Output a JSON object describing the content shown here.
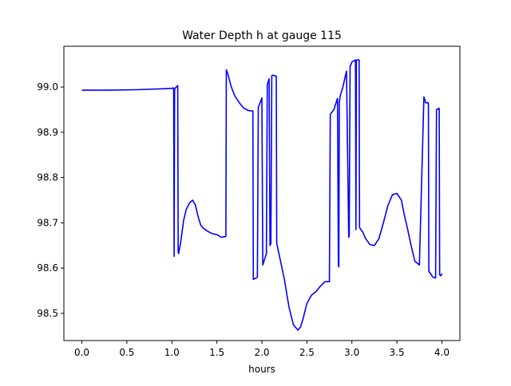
{
  "chart_data": {
    "type": "line",
    "title": "Water Depth h at gauge 115",
    "xlabel": "hours",
    "ylabel": "",
    "xlim": [
      -0.2,
      4.2
    ],
    "ylim": [
      98.44,
      99.09
    ],
    "x_ticks": [
      0.0,
      0.5,
      1.0,
      1.5,
      2.0,
      2.5,
      3.0,
      3.5,
      4.0
    ],
    "x_tick_labels": [
      "0.0",
      "0.5",
      "1.0",
      "1.5",
      "2.0",
      "2.5",
      "3.0",
      "3.5",
      "4.0"
    ],
    "y_ticks": [
      98.5,
      98.6,
      98.7,
      98.8,
      98.9,
      99.0
    ],
    "y_tick_labels": [
      "98.5",
      "98.6",
      "98.7",
      "98.8",
      "98.9",
      "99.0"
    ],
    "grid": false,
    "legend": "none",
    "series": [
      {
        "color": "#0000ff",
        "x": [
          0.0,
          0.3,
          0.6,
          0.9,
          1.0,
          1.02,
          1.025,
          1.03,
          1.04,
          1.05,
          1.065,
          1.07,
          1.075,
          1.1,
          1.13,
          1.16,
          1.2,
          1.23,
          1.26,
          1.29,
          1.32,
          1.35,
          1.4,
          1.45,
          1.5,
          1.55,
          1.6,
          1.605,
          1.62,
          1.66,
          1.7,
          1.75,
          1.8,
          1.85,
          1.9,
          1.905,
          1.95,
          1.96,
          2.0,
          2.01,
          2.05,
          2.06,
          2.08,
          2.09,
          2.1,
          2.11,
          2.12,
          2.16,
          2.165,
          2.2,
          2.25,
          2.3,
          2.35,
          2.4,
          2.43,
          2.46,
          2.5,
          2.55,
          2.6,
          2.65,
          2.7,
          2.75,
          2.76,
          2.8,
          2.84,
          2.85,
          2.855,
          2.86,
          2.87,
          2.9,
          2.94,
          2.965,
          2.97,
          2.98,
          2.99,
          3.0,
          3.04,
          3.045,
          3.05,
          3.06,
          3.08,
          3.085,
          3.09,
          3.12,
          3.15,
          3.2,
          3.25,
          3.3,
          3.35,
          3.4,
          3.45,
          3.5,
          3.55,
          3.58,
          3.62,
          3.66,
          3.7,
          3.75,
          3.8,
          3.81,
          3.82,
          3.85,
          3.855,
          3.9,
          3.93,
          3.94,
          3.97,
          3.975,
          3.99,
          4.0
        ],
        "y": [
          98.993,
          98.993,
          98.994,
          98.996,
          98.997,
          98.998,
          98.626,
          98.995,
          98.998,
          99.0,
          99.003,
          98.635,
          98.632,
          98.66,
          98.705,
          98.73,
          98.745,
          98.75,
          98.74,
          98.715,
          98.695,
          98.688,
          98.681,
          98.676,
          98.674,
          98.668,
          98.67,
          99.038,
          99.03,
          99.0,
          98.98,
          98.965,
          98.953,
          98.948,
          98.947,
          98.575,
          98.58,
          98.955,
          98.976,
          98.607,
          98.632,
          99.005,
          99.018,
          98.65,
          98.655,
          99.025,
          99.026,
          99.024,
          98.655,
          98.622,
          98.575,
          98.515,
          98.475,
          98.463,
          98.47,
          98.49,
          98.522,
          98.54,
          98.548,
          98.56,
          98.57,
          98.57,
          98.94,
          98.95,
          98.975,
          98.605,
          98.603,
          98.965,
          98.98,
          99.0,
          99.035,
          98.668,
          98.672,
          99.045,
          99.05,
          99.055,
          99.06,
          98.685,
          99.058,
          99.06,
          99.06,
          98.69,
          98.688,
          98.68,
          98.666,
          98.652,
          98.65,
          98.665,
          98.7,
          98.738,
          98.762,
          98.765,
          98.75,
          98.72,
          98.685,
          98.648,
          98.615,
          98.607,
          98.978,
          98.972,
          98.965,
          98.965,
          98.593,
          98.58,
          98.578,
          98.95,
          98.953,
          98.585,
          98.583,
          98.588
        ]
      }
    ]
  }
}
